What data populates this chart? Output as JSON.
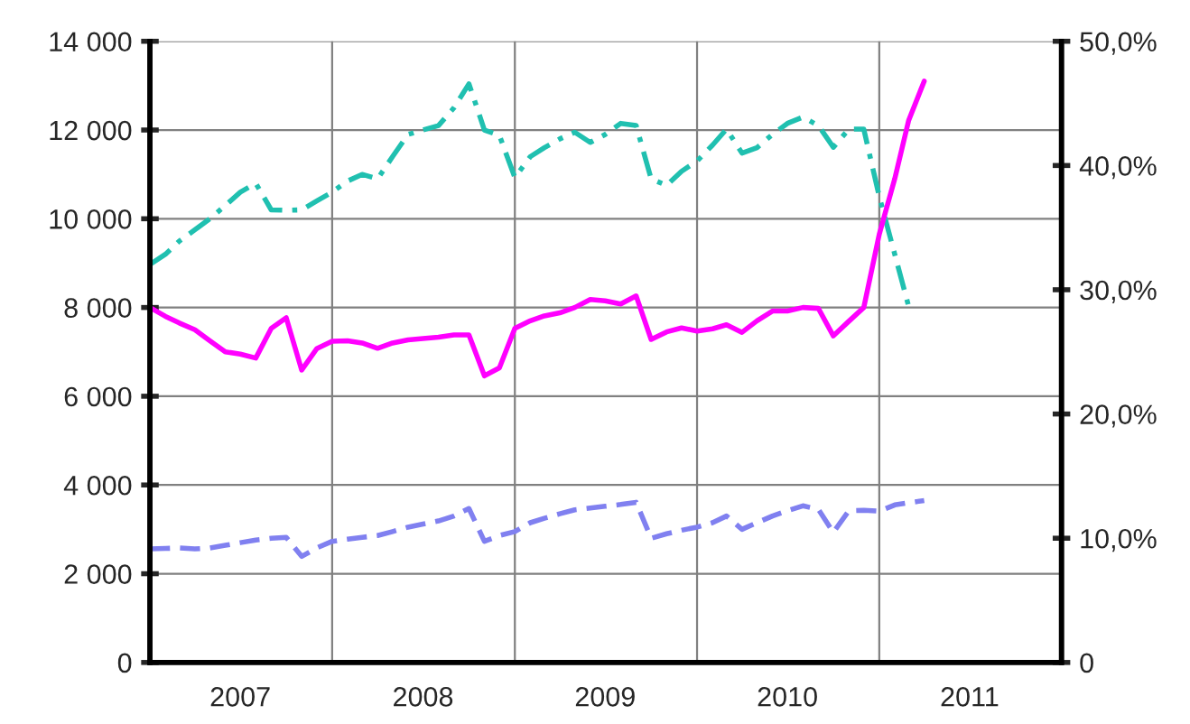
{
  "chart_data": {
    "type": "line",
    "x": [
      "2007-01",
      "2007-02",
      "2007-03",
      "2007-04",
      "2007-05",
      "2007-06",
      "2007-07",
      "2007-08",
      "2007-09",
      "2007-10",
      "2007-11",
      "2007-12",
      "2008-01",
      "2008-02",
      "2008-03",
      "2008-04",
      "2008-05",
      "2008-06",
      "2008-07",
      "2008-08",
      "2008-09",
      "2008-10",
      "2008-11",
      "2008-12",
      "2009-01",
      "2009-02",
      "2009-03",
      "2009-04",
      "2009-05",
      "2009-06",
      "2009-07",
      "2009-08",
      "2009-09",
      "2009-10",
      "2009-11",
      "2009-12",
      "2010-01",
      "2010-02",
      "2010-03",
      "2010-04",
      "2010-05",
      "2010-06",
      "2010-07",
      "2010-08",
      "2010-09",
      "2010-10",
      "2010-11",
      "2010-12",
      "2011-01",
      "2011-02",
      "2011-03",
      "2011-04"
    ],
    "series": [
      {
        "color": "#20c0b0",
        "line_style": "dashdot",
        "values": [
          8970,
          9200,
          9500,
          9750,
          10000,
          10300,
          10600,
          10800,
          10200,
          10190,
          10200,
          10400,
          10600,
          10850,
          11000,
          10900,
          11400,
          11900,
          12000,
          12100,
          12500,
          13040,
          12000,
          11880,
          10930,
          11400,
          11600,
          11800,
          11950,
          11720,
          11900,
          12150,
          12100,
          10900,
          10750,
          11070,
          11300,
          11660,
          12020,
          11480,
          11600,
          11900,
          12150,
          12290,
          12100,
          11610,
          12020,
          12020,
          10500,
          9200,
          8020,
          null
        ]
      },
      {
        "color": "#ff00ff",
        "line_style": "solid",
        "values": [
          8000,
          7800,
          7650,
          7500,
          7250,
          7000,
          6950,
          6860,
          7530,
          7770,
          6590,
          7070,
          7240,
          7250,
          7200,
          7080,
          7200,
          7270,
          7300,
          7330,
          7380,
          7380,
          6460,
          6640,
          7530,
          7700,
          7810,
          7880,
          8000,
          8180,
          8150,
          8080,
          8260,
          7280,
          7450,
          7540,
          7470,
          7520,
          7610,
          7440,
          7700,
          7920,
          7920,
          8000,
          7980,
          7360,
          7690,
          8000,
          9650,
          10900,
          12220,
          13100
        ]
      },
      {
        "color": "#8080f0",
        "line_style": "dashed",
        "values": [
          2560,
          2570,
          2580,
          2560,
          2580,
          2640,
          2700,
          2760,
          2800,
          2820,
          2390,
          2580,
          2730,
          2780,
          2820,
          2860,
          2950,
          3050,
          3120,
          3190,
          3300,
          3470,
          2730,
          2860,
          2950,
          3150,
          3250,
          3350,
          3440,
          3480,
          3520,
          3560,
          3610,
          2800,
          2900,
          2980,
          3050,
          3150,
          3300,
          3000,
          3150,
          3300,
          3420,
          3530,
          3450,
          2930,
          3420,
          3430,
          3410,
          3550,
          3600,
          3650
        ]
      }
    ],
    "xlim": [
      "2007-01",
      "2012-01"
    ],
    "xticks": [
      {
        "value": "2007-01",
        "label": null
      },
      {
        "value": "2007-07",
        "label": "2007"
      },
      {
        "value": "2008-01",
        "label": null
      },
      {
        "value": "2008-07",
        "label": "2008"
      },
      {
        "value": "2009-01",
        "label": null
      },
      {
        "value": "2009-07",
        "label": "2009"
      },
      {
        "value": "2010-01",
        "label": null
      },
      {
        "value": "2010-07",
        "label": "2010"
      },
      {
        "value": "2011-01",
        "label": null
      },
      {
        "value": "2011-07",
        "label": "2011"
      },
      {
        "value": "2012-01",
        "label": null
      }
    ],
    "ylim": [
      0,
      14000
    ],
    "yticks": [
      {
        "value": 0,
        "label": "0"
      },
      {
        "value": 2000,
        "label": "2 000"
      },
      {
        "value": 4000,
        "label": "4 000"
      },
      {
        "value": 6000,
        "label": "6 000"
      },
      {
        "value": 8000,
        "label": "8 000"
      },
      {
        "value": 10000,
        "label": "10 000"
      },
      {
        "value": 12000,
        "label": "12 000"
      },
      {
        "value": 14000,
        "label": "14 000"
      }
    ],
    "y2lim": [
      0,
      50
    ],
    "y2ticks": [
      {
        "value": 0,
        "label": "0"
      },
      {
        "value": 10,
        "label": "10,0%"
      },
      {
        "value": 20,
        "label": "20,0%"
      },
      {
        "value": 30,
        "label": "30,0%"
      },
      {
        "value": 40,
        "label": "40,0%"
      },
      {
        "value": 50,
        "label": "50,0%"
      }
    ],
    "grid": true,
    "legend": false,
    "marker": "none"
  }
}
